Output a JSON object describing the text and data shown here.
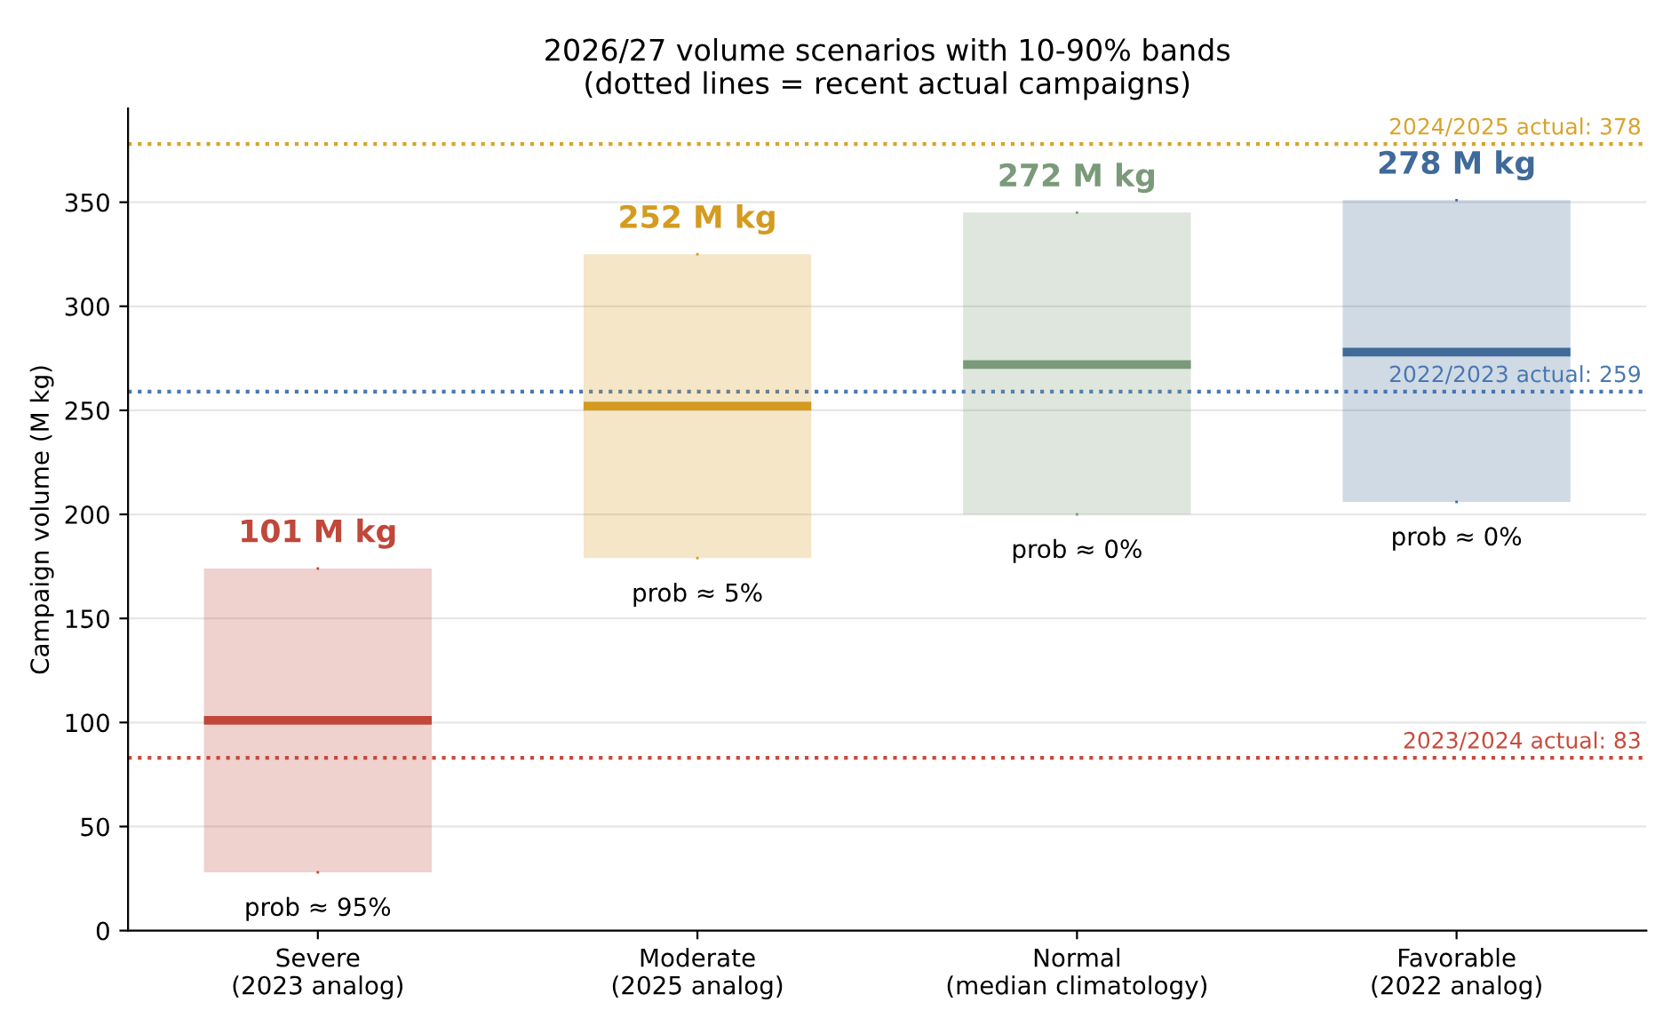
{
  "chart_data": {
    "type": "box",
    "title": "2026/27 volume scenarios with 10-90% bands\n(dotted lines = recent actual campaigns)",
    "ylabel": "Campaign volume (M kg)",
    "categories": [
      "Severe\n(2023 analog)",
      "Moderate\n(2025 analog)",
      "Normal\n(median climatology)",
      "Favorable\n(2022 analog)"
    ],
    "colors": [
      "#c0473a",
      "#d49b20",
      "#7a9a7a",
      "#3f6a99"
    ],
    "boxes": [
      {
        "low": 28,
        "q1": 28,
        "median": 101,
        "q3": 174,
        "high": 174
      },
      {
        "low": 179,
        "q1": 179,
        "median": 252,
        "q3": 325,
        "high": 325
      },
      {
        "low": 200,
        "q1": 200,
        "median": 272,
        "q3": 345,
        "high": 345
      },
      {
        "low": 206,
        "q1": 206,
        "median": 278,
        "q3": 351,
        "high": 351
      }
    ],
    "ylim": [
      0,
      395
    ],
    "yticks": [
      0,
      50,
      100,
      150,
      200,
      250,
      300,
      350
    ],
    "grid": "y",
    "ref_lines": [
      {
        "axis": "y",
        "value": 378,
        "label": "2024/2025 actual: 378",
        "color": "#d9a32a",
        "line_style": "dotted"
      },
      {
        "axis": "y",
        "value": 259,
        "label": "2022/2023 actual: 259",
        "color": "#4a78b0",
        "line_style": "dotted"
      },
      {
        "axis": "y",
        "value": 83,
        "label": "2023/2024 actual: 83",
        "color": "#c84a3a",
        "line_style": "dotted"
      }
    ],
    "annotations": [
      "101 M kg",
      "252 M kg",
      "272 M kg",
      "278 M kg",
      "prob ≈ 95%",
      "prob ≈ 5%",
      "prob ≈ 0%",
      "prob ≈ 0%"
    ]
  }
}
